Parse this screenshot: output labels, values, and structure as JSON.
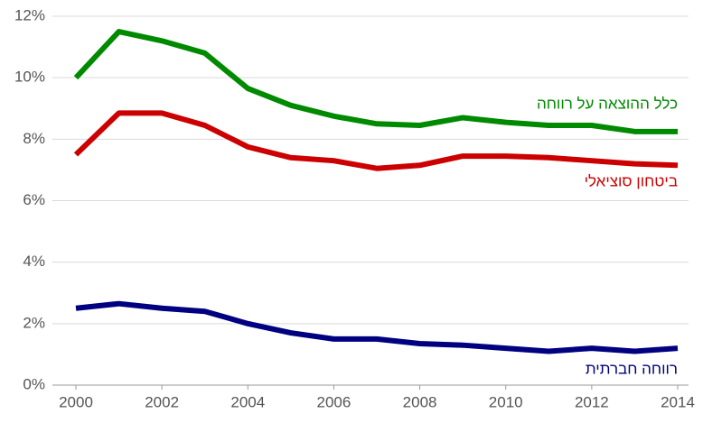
{
  "chart_data": {
    "type": "line",
    "x": [
      2000,
      2001,
      2002,
      2003,
      2004,
      2005,
      2006,
      2007,
      2008,
      2009,
      2010,
      2011,
      2012,
      2013,
      2014
    ],
    "series": [
      {
        "name": "כלל ההוצאה על רווחה",
        "color": "#008a00",
        "values": [
          10.0,
          11.5,
          11.2,
          10.8,
          9.65,
          9.1,
          8.75,
          8.5,
          8.45,
          8.7,
          8.55,
          8.45,
          8.45,
          8.25,
          8.25
        ]
      },
      {
        "name": "ביטחון סוציאלי",
        "color": "#cc0000",
        "values": [
          7.5,
          8.85,
          8.85,
          8.45,
          7.75,
          7.4,
          7.3,
          7.05,
          7.15,
          7.45,
          7.45,
          7.4,
          7.3,
          7.2,
          7.15
        ]
      },
      {
        "name": "רווחה חברתית",
        "color": "#000080",
        "values": [
          2.5,
          2.65,
          2.5,
          2.4,
          2.0,
          1.7,
          1.5,
          1.5,
          1.35,
          1.3,
          1.2,
          1.1,
          1.2,
          1.1,
          1.2
        ]
      }
    ],
    "xlim": [
      2000,
      2014
    ],
    "xticks": [
      2000,
      2002,
      2004,
      2006,
      2008,
      2010,
      2012,
      2014
    ],
    "ylim": [
      0,
      12
    ],
    "yticks": [
      {
        "value": 0,
        "label": "0%"
      },
      {
        "value": 2,
        "label": "2%"
      },
      {
        "value": 4,
        "label": "4%"
      },
      {
        "value": 6,
        "label": "6%"
      },
      {
        "value": 8,
        "label": "8%"
      },
      {
        "value": 10,
        "label": "10%"
      },
      {
        "value": 12,
        "label": "12%"
      }
    ],
    "grid": true
  }
}
